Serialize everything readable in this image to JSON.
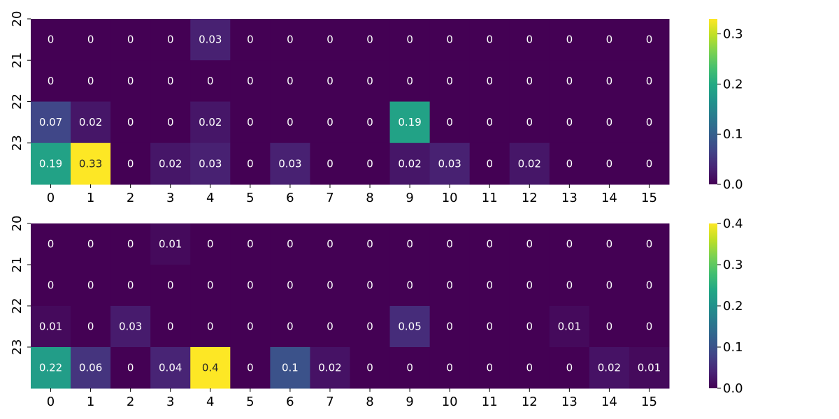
{
  "chart_data": [
    {
      "type": "heatmap",
      "title": "",
      "xlabel": "",
      "ylabel": "",
      "x": [
        "0",
        "1",
        "2",
        "3",
        "4",
        "5",
        "6",
        "7",
        "8",
        "9",
        "10",
        "11",
        "12",
        "13",
        "14",
        "15"
      ],
      "y": [
        "20",
        "21",
        "22",
        "23"
      ],
      "values": [
        [
          0,
          0,
          0,
          0,
          0.03,
          0,
          0,
          0,
          0,
          0,
          0,
          0,
          0,
          0,
          0,
          0
        ],
        [
          0,
          0,
          0,
          0,
          0,
          0,
          0,
          0,
          0,
          0,
          0,
          0,
          0,
          0,
          0,
          0
        ],
        [
          0.07,
          0.02,
          0,
          0,
          0.02,
          0,
          0,
          0,
          0,
          0.19,
          0,
          0,
          0,
          0,
          0,
          0
        ],
        [
          0.19,
          0.33,
          0,
          0.02,
          0.03,
          0,
          0.03,
          0,
          0,
          0.02,
          0.03,
          0,
          0.02,
          0,
          0,
          0
        ]
      ],
      "colormap": "viridis",
      "vmin": 0,
      "vmax": 0.33,
      "colorbar_ticks": [
        "0.0",
        "0.1",
        "0.2",
        "0.3"
      ],
      "colorbar_tick_values": [
        0,
        0.1,
        0.2,
        0.3
      ],
      "annotated": true,
      "grid": false
    },
    {
      "type": "heatmap",
      "title": "",
      "xlabel": "",
      "ylabel": "",
      "x": [
        "0",
        "1",
        "2",
        "3",
        "4",
        "5",
        "6",
        "7",
        "8",
        "9",
        "10",
        "11",
        "12",
        "13",
        "14",
        "15"
      ],
      "y": [
        "20",
        "21",
        "22",
        "23"
      ],
      "values": [
        [
          0,
          0,
          0,
          0.01,
          0,
          0,
          0,
          0,
          0,
          0,
          0,
          0,
          0,
          0,
          0,
          0
        ],
        [
          0,
          0,
          0,
          0,
          0,
          0,
          0,
          0,
          0,
          0,
          0,
          0,
          0,
          0,
          0,
          0
        ],
        [
          0.01,
          0,
          0.03,
          0,
          0,
          0,
          0,
          0,
          0,
          0.05,
          0,
          0,
          0,
          0.01,
          0,
          0
        ],
        [
          0.22,
          0.06,
          0,
          0.04,
          0.4,
          0,
          0.1,
          0.02,
          0,
          0,
          0,
          0,
          0,
          0,
          0.02,
          0.01
        ]
      ],
      "colormap": "viridis",
      "vmin": 0,
      "vmax": 0.4,
      "colorbar_ticks": [
        "0.0",
        "0.1",
        "0.2",
        "0.3",
        "0.4"
      ],
      "colorbar_tick_values": [
        0,
        0.1,
        0.2,
        0.3,
        0.4
      ],
      "annotated": true,
      "grid": false
    }
  ]
}
